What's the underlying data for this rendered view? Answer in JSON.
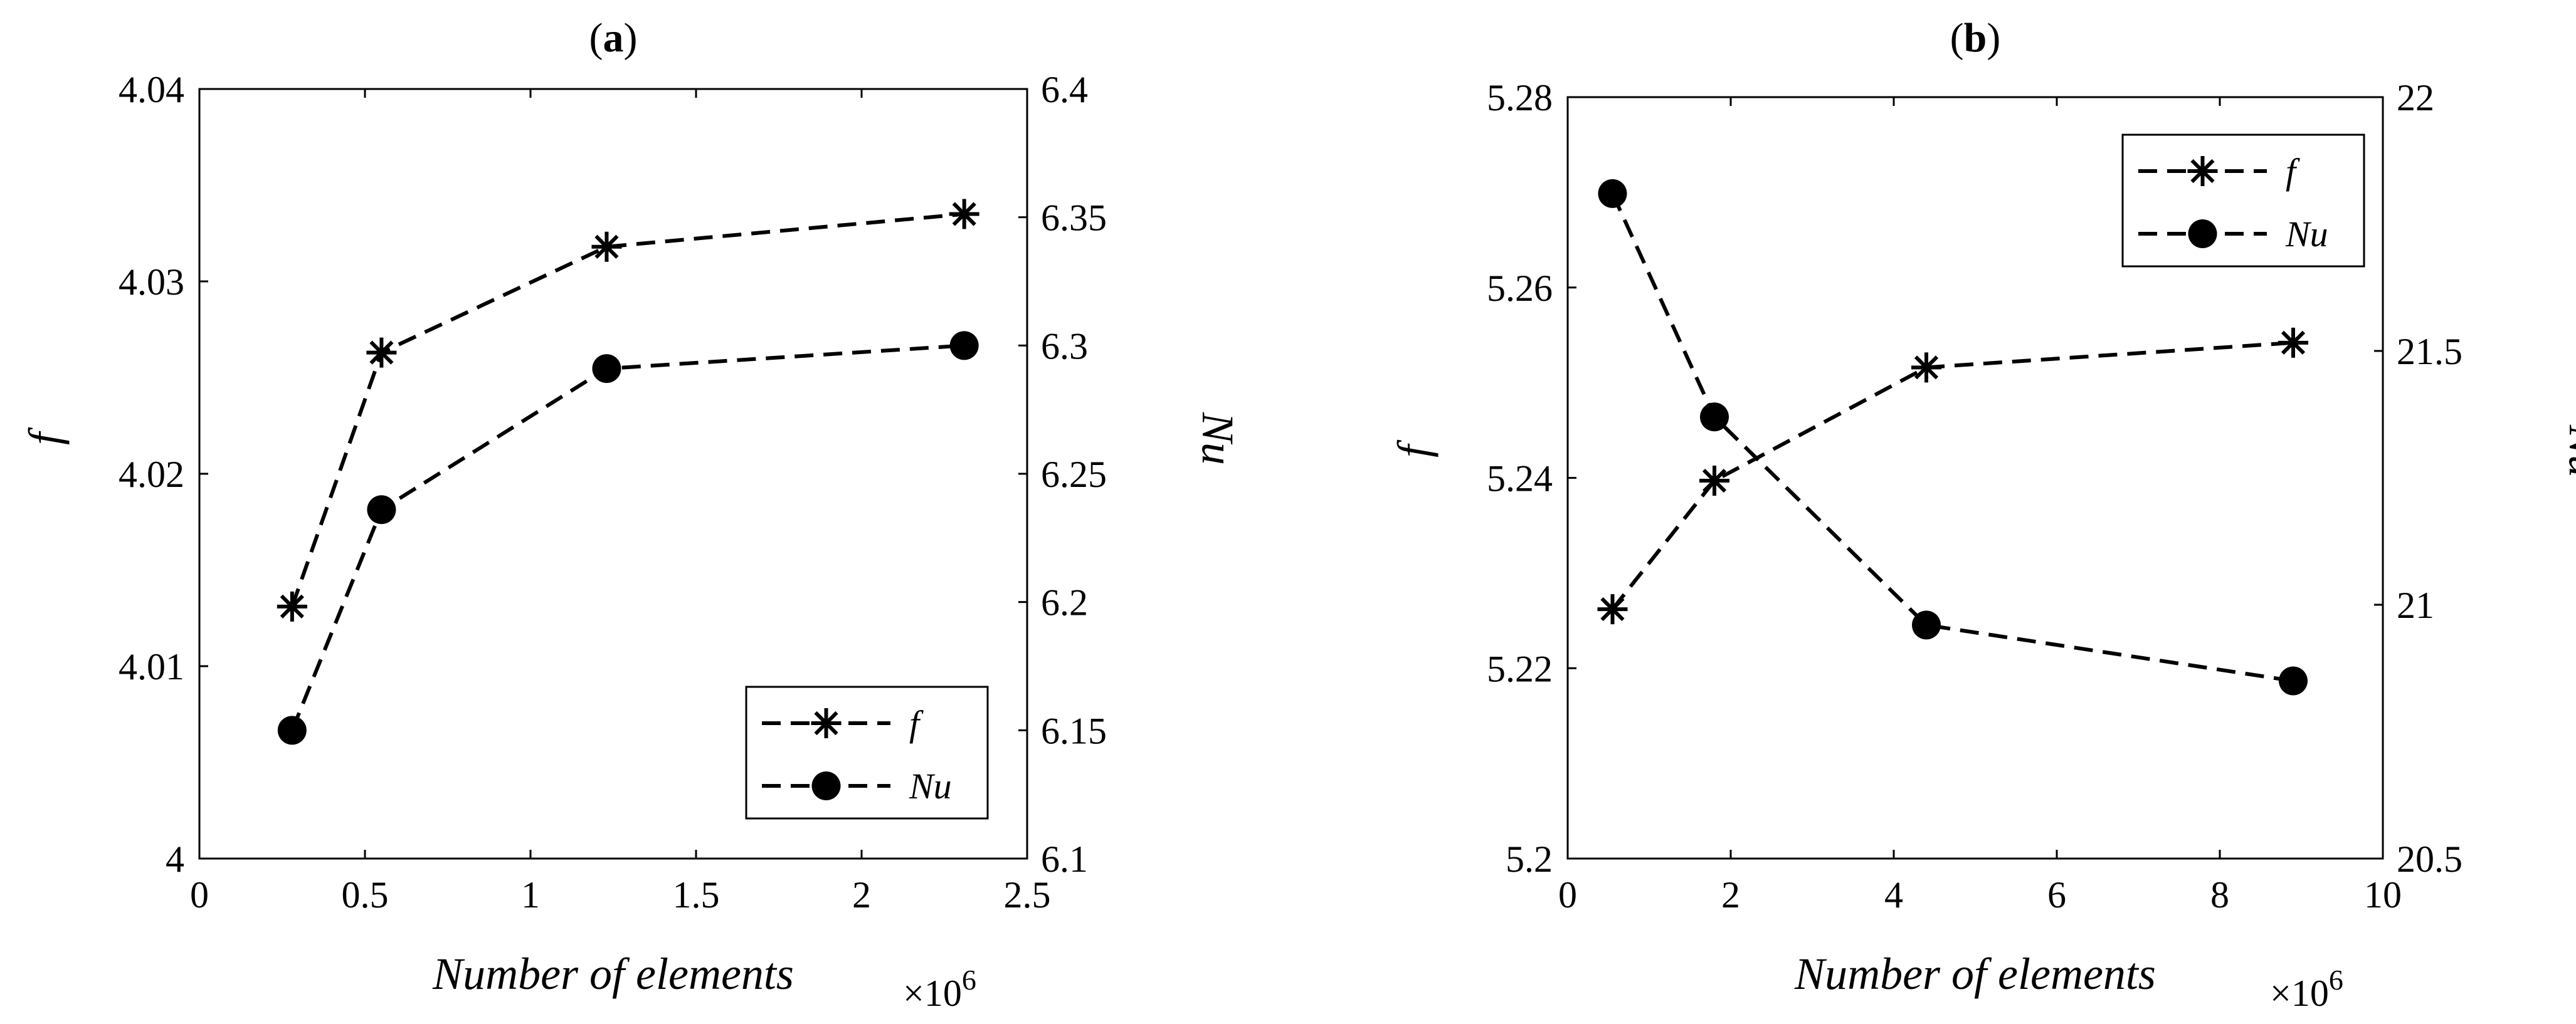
{
  "chart_data": [
    {
      "type": "line",
      "title": "(a)",
      "title_parts": {
        "open": "(",
        "letter": "a",
        "close": ")"
      },
      "xlabel": "Number of elements",
      "x_multiplier": "×10^6",
      "x_multiplier_base": "×10",
      "x_multiplier_exp": "6",
      "xlim": [
        0,
        2.5
      ],
      "x_ticks": [
        "0",
        "0.5",
        "1",
        "1.5",
        "2",
        "2.5"
      ],
      "ylabel_left": "f",
      "ylim_left": [
        4.0,
        4.04
      ],
      "y_ticks_left": [
        "4",
        "4.01",
        "4.02",
        "4.03",
        "4.04"
      ],
      "ylabel_right": "Nu",
      "ylim_right": [
        6.1,
        6.4
      ],
      "y_ticks_right": [
        "6.1",
        "6.15",
        "6.2",
        "6.25",
        "6.3",
        "6.35",
        "6.4"
      ],
      "legend_position": "bottom-right",
      "series": [
        {
          "name": "f",
          "axis": "left",
          "marker": "asterisk",
          "x": [
            0.28,
            0.55,
            1.23,
            2.31
          ],
          "values": [
            4.0131,
            4.0263,
            4.0318,
            4.0335
          ]
        },
        {
          "name": "Nu",
          "axis": "right",
          "marker": "circle",
          "x": [
            0.28,
            0.55,
            1.23,
            2.31
          ],
          "values": [
            6.15,
            6.236,
            6.291,
            6.3
          ]
        }
      ]
    },
    {
      "type": "line",
      "title": "(b)",
      "title_parts": {
        "open": "(",
        "letter": "b",
        "close": ")"
      },
      "xlabel": "Number of elements",
      "x_multiplier": "×10^6",
      "x_multiplier_base": "×10",
      "x_multiplier_exp": "6",
      "xlim": [
        0,
        10
      ],
      "x_ticks": [
        "0",
        "2",
        "4",
        "6",
        "8",
        "10"
      ],
      "ylabel_left": "f",
      "ylim_left": [
        5.2,
        5.28
      ],
      "y_ticks_left": [
        "5.2",
        "5.22",
        "5.24",
        "5.26",
        "5.28"
      ],
      "ylabel_right": "Nu",
      "ylim_right": [
        20.5,
        22
      ],
      "y_ticks_right": [
        "20.5",
        "21",
        "21.5",
        "22"
      ],
      "legend_position": "top-right",
      "series": [
        {
          "name": "f",
          "axis": "left",
          "marker": "asterisk",
          "x": [
            0.55,
            1.8,
            4.4,
            8.9
          ],
          "values": [
            5.2262,
            5.2397,
            5.2516,
            5.2542
          ]
        },
        {
          "name": "Nu",
          "axis": "right",
          "marker": "circle",
          "x": [
            0.55,
            1.8,
            4.4,
            8.9
          ],
          "values": [
            21.81,
            21.37,
            20.96,
            20.85
          ]
        }
      ]
    }
  ]
}
